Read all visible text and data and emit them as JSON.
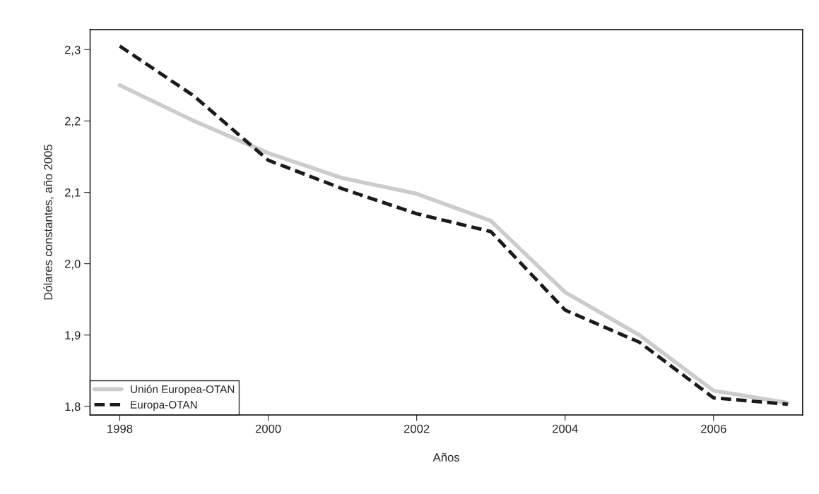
{
  "chart_data": {
    "type": "line",
    "xlabel": "Años",
    "ylabel": "Dólares constantes, año 2005",
    "x": [
      1998,
      1999,
      2000,
      2001,
      2002,
      2003,
      2004,
      2005,
      2006,
      2007
    ],
    "series": [
      {
        "name": "Unión Europea-OTAN",
        "color": "#cccccc",
        "line_style": "solid",
        "values": [
          2.25,
          2.2,
          2.155,
          2.12,
          2.098,
          2.06,
          1.96,
          1.9,
          1.822,
          1.805
        ]
      },
      {
        "name": "Europa-OTAN",
        "color": "#1a1a1a",
        "line_style": "dashed",
        "values": [
          2.305,
          2.235,
          2.145,
          2.105,
          2.07,
          2.045,
          1.935,
          1.89,
          1.812,
          1.803
        ]
      }
    ],
    "xlim": [
      1997.6,
      2007.2
    ],
    "xticks": [
      1998,
      2000,
      2002,
      2004,
      2006
    ],
    "ylim": [
      1.788,
      2.328
    ],
    "yticks": [
      {
        "value": 1.8,
        "label": "1,8"
      },
      {
        "value": 1.9,
        "label": "1,9"
      },
      {
        "value": 2.0,
        "label": "2,0"
      },
      {
        "value": 2.1,
        "label": "2,1"
      },
      {
        "value": 2.2,
        "label": "2,2"
      },
      {
        "value": 2.3,
        "label": "2,3"
      }
    ],
    "grid": false,
    "legend": "bottom left"
  }
}
